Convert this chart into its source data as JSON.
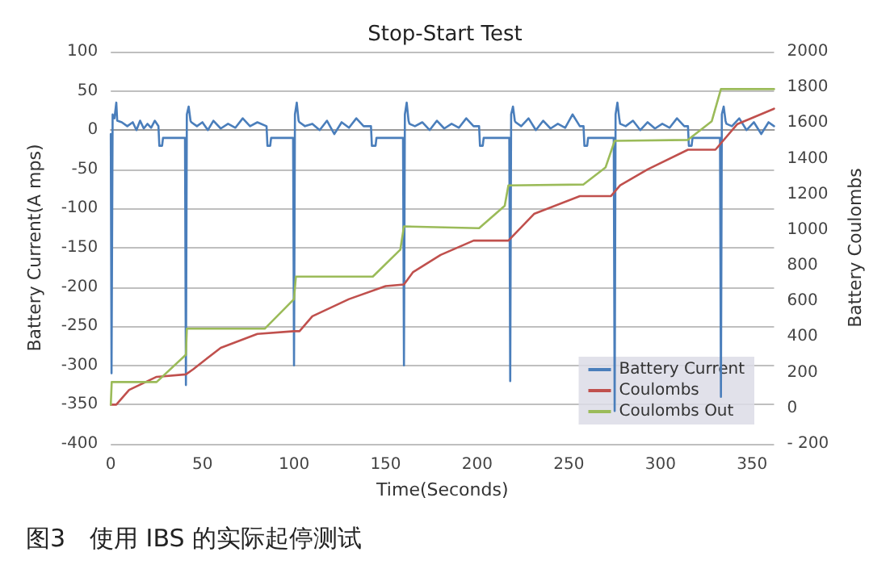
{
  "chart_data": {
    "type": "line",
    "title": "Stop-Start Test",
    "xlabel": "Time(Seconds)",
    "ylabel": "Battery Current(A mps)",
    "y2label": "Battery Coulombs",
    "annotations": [
      "图3　使用 IBS 的实际起停测试"
    ],
    "xlim": [
      0,
      362
    ],
    "xticks": [
      0,
      50,
      100,
      150,
      200,
      250,
      300,
      350
    ],
    "ylim": [
      -400,
      100
    ],
    "yticks": [
      -400,
      -350,
      -300,
      -250,
      -200,
      -150,
      -100,
      -50,
      0,
      50,
      100
    ],
    "y2lim": [
      -200,
      2000
    ],
    "y2ticks": [
      {
        "value": -200,
        "label": "- 200"
      },
      0,
      200,
      400,
      600,
      800,
      1000,
      1200,
      1400,
      1600,
      1800,
      2000
    ],
    "grid": "y",
    "legend": "bottom right",
    "marker": "none",
    "line_style": "solid",
    "series": [
      {
        "name": "Battery Current",
        "color": "#4a7ebb",
        "x": [
          0,
          0.4,
          1,
          2,
          3,
          3.5,
          6,
          9,
          12,
          14,
          16,
          18,
          20,
          22,
          24,
          26,
          26.5,
          28,
          28.5,
          40.5,
          41,
          41.5,
          42.5,
          43.5,
          44,
          47,
          50,
          53,
          56,
          60,
          64,
          68,
          72,
          76,
          80,
          85,
          85.5,
          87,
          87.5,
          99.5,
          100,
          100.5,
          101.5,
          102.5,
          103,
          106,
          110,
          114,
          118,
          122,
          126,
          130,
          134,
          138,
          142,
          142.5,
          144.5,
          145,
          159.5,
          160,
          160.5,
          161.5,
          162.5,
          163,
          166,
          170,
          174,
          178,
          182,
          186,
          190,
          194,
          198,
          201,
          201.5,
          203,
          203.5,
          217.5,
          218,
          218.5,
          219.5,
          220.5,
          221,
          224,
          228,
          232,
          236,
          240,
          244,
          248,
          252,
          256,
          258,
          258.5,
          260,
          260.5,
          274.5,
          275,
          275.5,
          276.5,
          277.5,
          278,
          281,
          285,
          289,
          293,
          297,
          301,
          305,
          309,
          313,
          315,
          315.5,
          317,
          317.5,
          332.5,
          333,
          333.5,
          334.5,
          335.5,
          336,
          339,
          343,
          347,
          351,
          355,
          359,
          362
        ],
        "values": [
          -5,
          -310,
          20,
          15,
          35,
          12,
          10,
          5,
          10,
          0,
          12,
          2,
          8,
          3,
          12,
          5,
          -20,
          -20,
          -10,
          -10,
          -325,
          20,
          30,
          12,
          10,
          5,
          10,
          0,
          12,
          2,
          8,
          3,
          15,
          5,
          10,
          5,
          -20,
          -20,
          -10,
          -10,
          -300,
          20,
          35,
          12,
          10,
          5,
          8,
          0,
          12,
          -5,
          10,
          3,
          15,
          5,
          5,
          -20,
          -20,
          -10,
          -10,
          -300,
          20,
          35,
          12,
          8,
          5,
          10,
          0,
          12,
          2,
          8,
          3,
          15,
          5,
          5,
          -20,
          -20,
          -10,
          -10,
          -320,
          20,
          30,
          12,
          10,
          5,
          15,
          0,
          12,
          2,
          8,
          3,
          20,
          5,
          5,
          -20,
          -20,
          -10,
          -10,
          -358,
          20,
          35,
          15,
          8,
          5,
          12,
          0,
          10,
          2,
          8,
          3,
          15,
          5,
          5,
          -20,
          -20,
          -10,
          -10,
          -340,
          20,
          30,
          12,
          8,
          5,
          15,
          0,
          10,
          -5,
          10,
          5
        ]
      },
      {
        "name": "Coulombs",
        "color": "#c0504d",
        "axis": "y2",
        "x": [
          0,
          3,
          10,
          25,
          41,
          45,
          60,
          80,
          100,
          103,
          110,
          130,
          150,
          160,
          165,
          180,
          198,
          217,
          231,
          256,
          273,
          278,
          293,
          315,
          330,
          342,
          362
        ],
        "values": [
          20,
          20,
          103,
          176,
          190,
          219,
          339,
          417,
          432,
          432,
          516,
          612,
          685,
          694,
          764,
          860,
          940,
          940,
          1090,
          1190,
          1190,
          1250,
          1340,
          1450,
          1450,
          1594,
          1680
        ]
      },
      {
        "name": "Coulombs Out",
        "color": "#9bbb59",
        "axis": "y2",
        "x": [
          0,
          0.5,
          25,
          41,
          41.5,
          84,
          100,
          101,
          143,
          158,
          160,
          201,
          215,
          217,
          258,
          270,
          275,
          315,
          328,
          333,
          362
        ],
        "values": [
          20,
          147,
          147,
          300,
          446,
          446,
          612,
          738,
          738,
          889,
          1020,
          1010,
          1135,
          1250,
          1255,
          1350,
          1500,
          1505,
          1610,
          1790,
          1790
        ]
      }
    ]
  }
}
